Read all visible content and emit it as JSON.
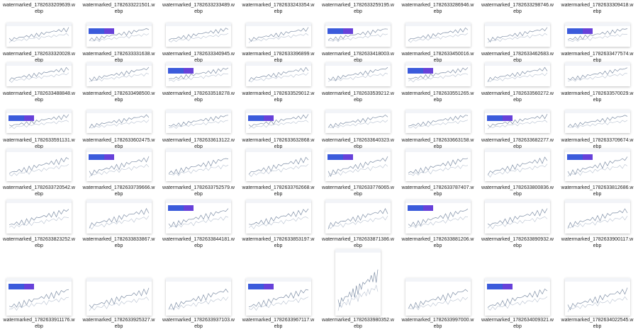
{
  "rows": [
    [
      "watermarked_1782633209639.webp",
      "watermarked_1782633221501.webp",
      "watermarked_1782633233489.webp",
      "watermarked_1782633243354.webp",
      "watermarked_1782633259195.webp",
      "watermarked_1782633286946.webp",
      "watermarked_1782633298746.webp",
      "watermarked_1782633309418.webp"
    ],
    [
      "watermarked_1782633320028.webp",
      "watermarked_1782633331638.webp",
      "watermarked_1782633340945.webp",
      "watermarked_1782633396899.webp",
      "watermarked_1782633418003.webp",
      "watermarked_1782633450016.webp",
      "watermarked_1782633462683.webp",
      "watermarked_1782633477574.webp"
    ],
    [
      "watermarked_1782633488848.webp",
      "watermarked_1782633498500.webp",
      "watermarked_1782633518278.webp",
      "watermarked_1782633529012.webp",
      "watermarked_1782633539212.webp",
      "watermarked_1782633551265.webp",
      "watermarked_1782633560272.webp",
      "watermarked_1782633570029.webp"
    ],
    [
      "watermarked_1782633591131.webp",
      "watermarked_1782633602475.webp",
      "watermarked_1782633613122.webp",
      "watermarked_1782633632868.webp",
      "watermarked_1782633640323.webp",
      "watermarked_1782633663158.webp",
      "watermarked_1782633682277.webp",
      "watermarked_1782633709674.webp"
    ],
    [
      "watermarked_1782633720542.webp",
      "watermarked_1782633739666.webp",
      "watermarked_1782633752579.webp",
      "watermarked_1782633762668.webp",
      "watermarked_1782633776065.webp",
      "watermarked_1782633787407.webp",
      "watermarked_1782633800836.webp",
      "watermarked_1782633812686.webp"
    ],
    [
      "watermarked_1782633823252.webp",
      "watermarked_1782633833867.webp",
      "watermarked_1782633844181.webp",
      "watermarked_1782633853197.webp",
      "watermarked_1782633871386.webp",
      "watermarked_1782633881206.webp",
      "watermarked_1782633890932.webp",
      "watermarked_1782633900117.webp"
    ],
    [
      "watermarked_1782633911176.webp",
      "watermarked_1782633925327.webp",
      "watermarked_1782633937103.webp",
      "watermarked_1782633967117.webp",
      "watermarked_1782633980352.webp",
      "watermarked_1782633997000.webp",
      "watermarked_1782634009321.webp",
      "watermarked_1782634022545.webp"
    ]
  ]
}
